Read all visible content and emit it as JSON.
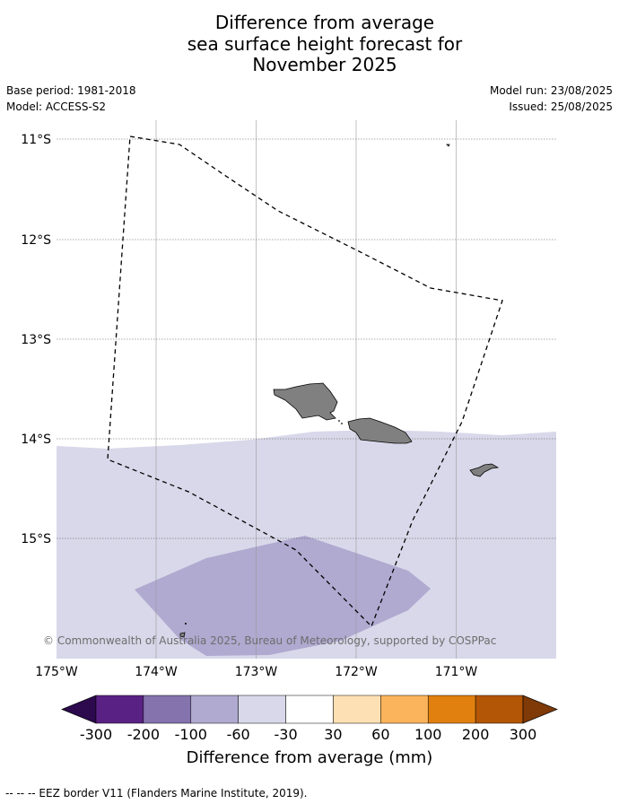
{
  "header": {
    "title_line1": "Difference from average",
    "title_line2": "sea surface height forecast for",
    "title_line3": "November 2025",
    "base_period": "Base period: 1981-2018",
    "model": "Model: ACCESS-S2",
    "model_run": "Model run: 23/08/2025",
    "issued": "Issued: 25/08/2025"
  },
  "map": {
    "lat_labels": [
      "11°S",
      "12°S",
      "13°S",
      "14°S",
      "15°S"
    ],
    "lon_labels": [
      "175°W",
      "174°W",
      "173°W",
      "172°W",
      "171°W"
    ],
    "credit": "© Commonwealth of Australia 2025, Bureau of Meteorology, supported by COSPPac"
  },
  "colorbar": {
    "label": "Difference from average (mm)",
    "ticks": [
      "-300",
      "-200",
      "-100",
      "-60",
      "-30",
      "30",
      "60",
      "100",
      "200",
      "300"
    ],
    "colors": [
      "#2d0a4e",
      "#5a2184",
      "#8473ad",
      "#b0a9d0",
      "#d8d8ea",
      "#ffffff",
      "#fde0b4",
      "#fbb45b",
      "#e1800f",
      "#b35606",
      "#7f3a07"
    ]
  },
  "footnote": "--  --  -- EEZ border V11 (Flanders Marine Institute, 2019)."
}
